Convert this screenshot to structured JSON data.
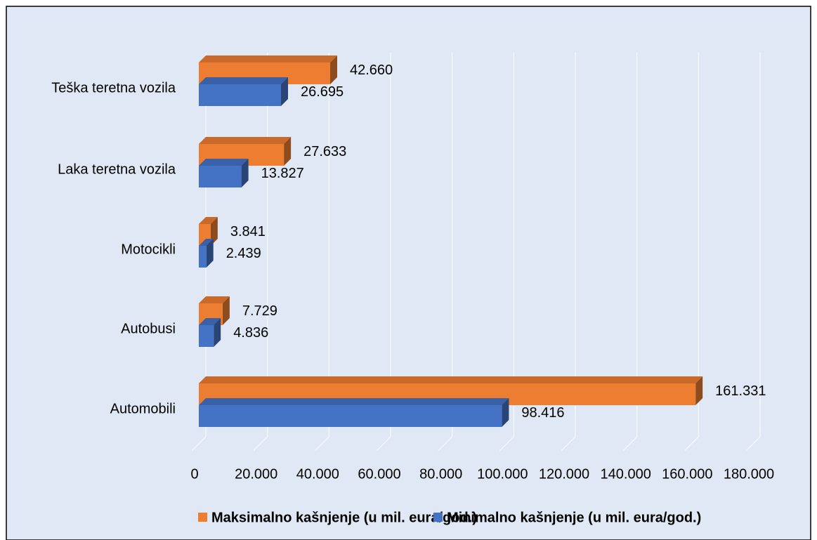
{
  "chart_data": {
    "type": "bar",
    "orientation": "horizontal",
    "categories": [
      "Automobili",
      "Autobusi",
      "Motocikli",
      "Laka teretna vozila",
      "Teška teretna vozila"
    ],
    "series": [
      {
        "name": "Maksimalno kašnjenje (u mil. eura/god.)",
        "color": "#ed7d31",
        "values": [
          161331,
          7729,
          3841,
          27633,
          42660
        ],
        "value_labels": [
          "161.331",
          "7.729",
          "3.841",
          "27.633",
          "42.660"
        ]
      },
      {
        "name": "Minimalno kašnjenje (u mil. eura/god.)",
        "color": "#4472c4",
        "values": [
          98416,
          4836,
          2439,
          13827,
          26695
        ],
        "value_labels": [
          "98.416",
          "4.836",
          "2.439",
          "13.827",
          "26.695"
        ]
      }
    ],
    "xlim": [
      0,
      180000
    ],
    "xticks": [
      0,
      {
        "value": 20000,
        "label": "20.000"
      },
      {
        "value": 40000,
        "label": "40.000"
      },
      {
        "value": 60000,
        "label": "60.000"
      },
      {
        "value": 80000,
        "label": "80.000"
      },
      {
        "value": 100000,
        "label": "100.000"
      },
      {
        "value": 120000,
        "label": "120.000"
      },
      {
        "value": 140000,
        "label": "140.000"
      },
      {
        "value": 160000,
        "label": "160.000"
      },
      {
        "value": 180000,
        "label": "180.000"
      }
    ],
    "grid": true,
    "legend": "bottom"
  }
}
